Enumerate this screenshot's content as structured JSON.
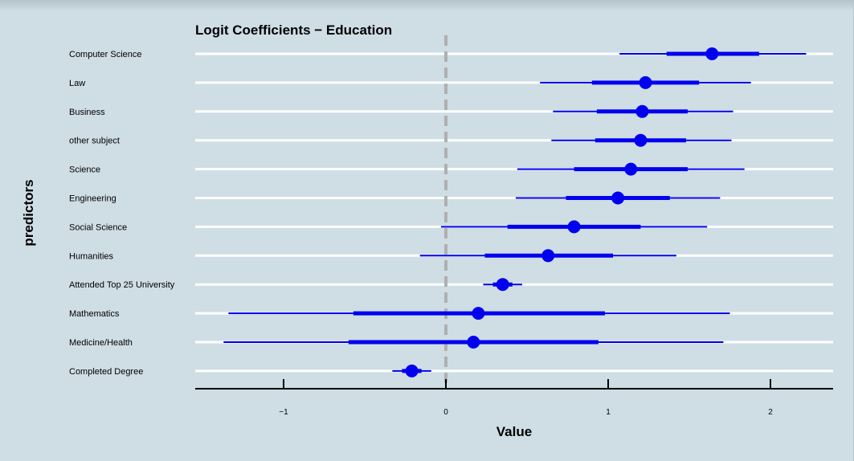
{
  "chart_data": {
    "type": "scatter",
    "title": "Logit Coefficients − Education",
    "xlabel": "Value",
    "ylabel": "predictors",
    "xlim": [
      -1.55,
      2.4
    ],
    "xticks": [
      -1,
      0,
      1,
      2
    ],
    "xtick_labels": [
      "−1",
      "0",
      "1",
      "2"
    ],
    "reference_line": 0,
    "grid": true,
    "colors": {
      "point": "#0000ee",
      "background": "#cfdde4",
      "gridline": "#ffffff",
      "reference": "#b0b0b0"
    },
    "categories": [
      "Computer Science",
      "Law",
      "Business",
      "other subject",
      "Science",
      "Engineering",
      "Social Science",
      "Humanities",
      "Attended Top 25 University",
      "Mathematics",
      "Medicine/Health",
      "Completed Degree"
    ],
    "estimates": [
      {
        "name": "Computer Science",
        "value": 1.64,
        "inner": [
          1.36,
          1.93
        ],
        "outer": [
          1.07,
          2.22
        ]
      },
      {
        "name": "Law",
        "value": 1.23,
        "inner": [
          0.9,
          1.56
        ],
        "outer": [
          0.58,
          1.88
        ]
      },
      {
        "name": "Business",
        "value": 1.21,
        "inner": [
          0.93,
          1.49
        ],
        "outer": [
          0.66,
          1.77
        ]
      },
      {
        "name": "other subject",
        "value": 1.2,
        "inner": [
          0.92,
          1.48
        ],
        "outer": [
          0.65,
          1.76
        ]
      },
      {
        "name": "Science",
        "value": 1.14,
        "inner": [
          0.79,
          1.49
        ],
        "outer": [
          0.44,
          1.84
        ]
      },
      {
        "name": "Engineering",
        "value": 1.06,
        "inner": [
          0.74,
          1.38
        ],
        "outer": [
          0.43,
          1.69
        ]
      },
      {
        "name": "Social Science",
        "value": 0.79,
        "inner": [
          0.38,
          1.2
        ],
        "outer": [
          -0.03,
          1.61
        ]
      },
      {
        "name": "Humanities",
        "value": 0.63,
        "inner": [
          0.24,
          1.03
        ],
        "outer": [
          -0.16,
          1.42
        ]
      },
      {
        "name": "Attended Top 25 University",
        "value": 0.35,
        "inner": [
          0.29,
          0.41
        ],
        "outer": [
          0.23,
          0.47
        ]
      },
      {
        "name": "Mathematics",
        "value": 0.2,
        "inner": [
          -0.57,
          0.98
        ],
        "outer": [
          -1.34,
          1.75
        ]
      },
      {
        "name": "Medicine/Health",
        "value": 0.17,
        "inner": [
          -0.6,
          0.94
        ],
        "outer": [
          -1.37,
          1.71
        ]
      },
      {
        "name": "Completed Degree",
        "value": -0.21,
        "inner": [
          -0.27,
          -0.15
        ],
        "outer": [
          -0.33,
          -0.09
        ]
      }
    ]
  }
}
